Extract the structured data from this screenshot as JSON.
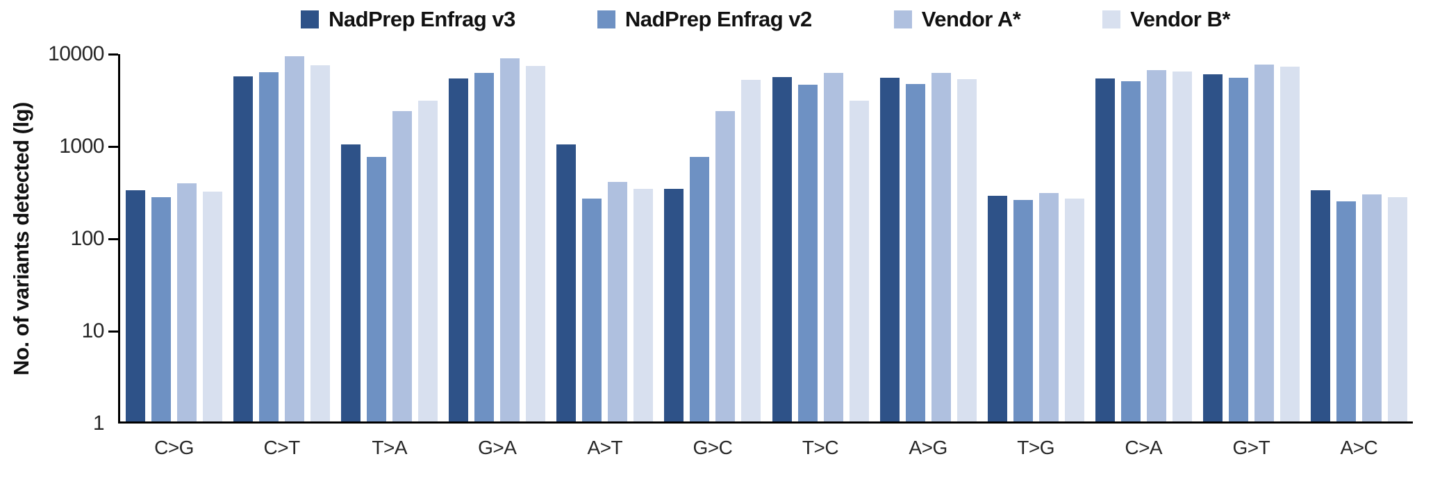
{
  "chart_data": {
    "type": "bar",
    "title": "",
    "xlabel": "",
    "ylabel": "No. of variants detected (lg)",
    "y_scale": "log",
    "ylim": [
      1,
      10000
    ],
    "y_ticks": [
      1,
      10,
      100,
      1000,
      10000
    ],
    "y_tick_labels": [
      "1",
      "10",
      "100",
      "1000",
      "10000"
    ],
    "grid": false,
    "legend_position": "top",
    "categories": [
      "C>G",
      "C>T",
      "T>A",
      "G>A",
      "A>T",
      "G>C",
      "T>C",
      "A>G",
      "T>G",
      "C>A",
      "G>T",
      "A>C"
    ],
    "series": [
      {
        "name": "NadPrep Enfrag v3",
        "color": "#2E5288",
        "values": [
          320,
          5500,
          1000,
          5200,
          1000,
          330,
          5400,
          5300,
          280,
          5200,
          5700,
          320
        ]
      },
      {
        "name": "NadPrep Enfrag v2",
        "color": "#6E91C3",
        "values": [
          270,
          6100,
          730,
          5900,
          260,
          730,
          4400,
          4500,
          250,
          4800,
          5300,
          240
        ]
      },
      {
        "name": "Vendor A*",
        "color": "#AFC0DF",
        "values": [
          380,
          9000,
          2300,
          8600,
          390,
          2300,
          6000,
          6000,
          300,
          6400,
          7300,
          290
        ]
      },
      {
        "name": "Vendor B*",
        "color": "#D8E0EF",
        "values": [
          310,
          7200,
          3000,
          7100,
          330,
          5000,
          3000,
          5100,
          260,
          6200,
          7000,
          270
        ]
      }
    ],
    "axis_color": "#000000",
    "background_color": "#FFFFFF"
  }
}
